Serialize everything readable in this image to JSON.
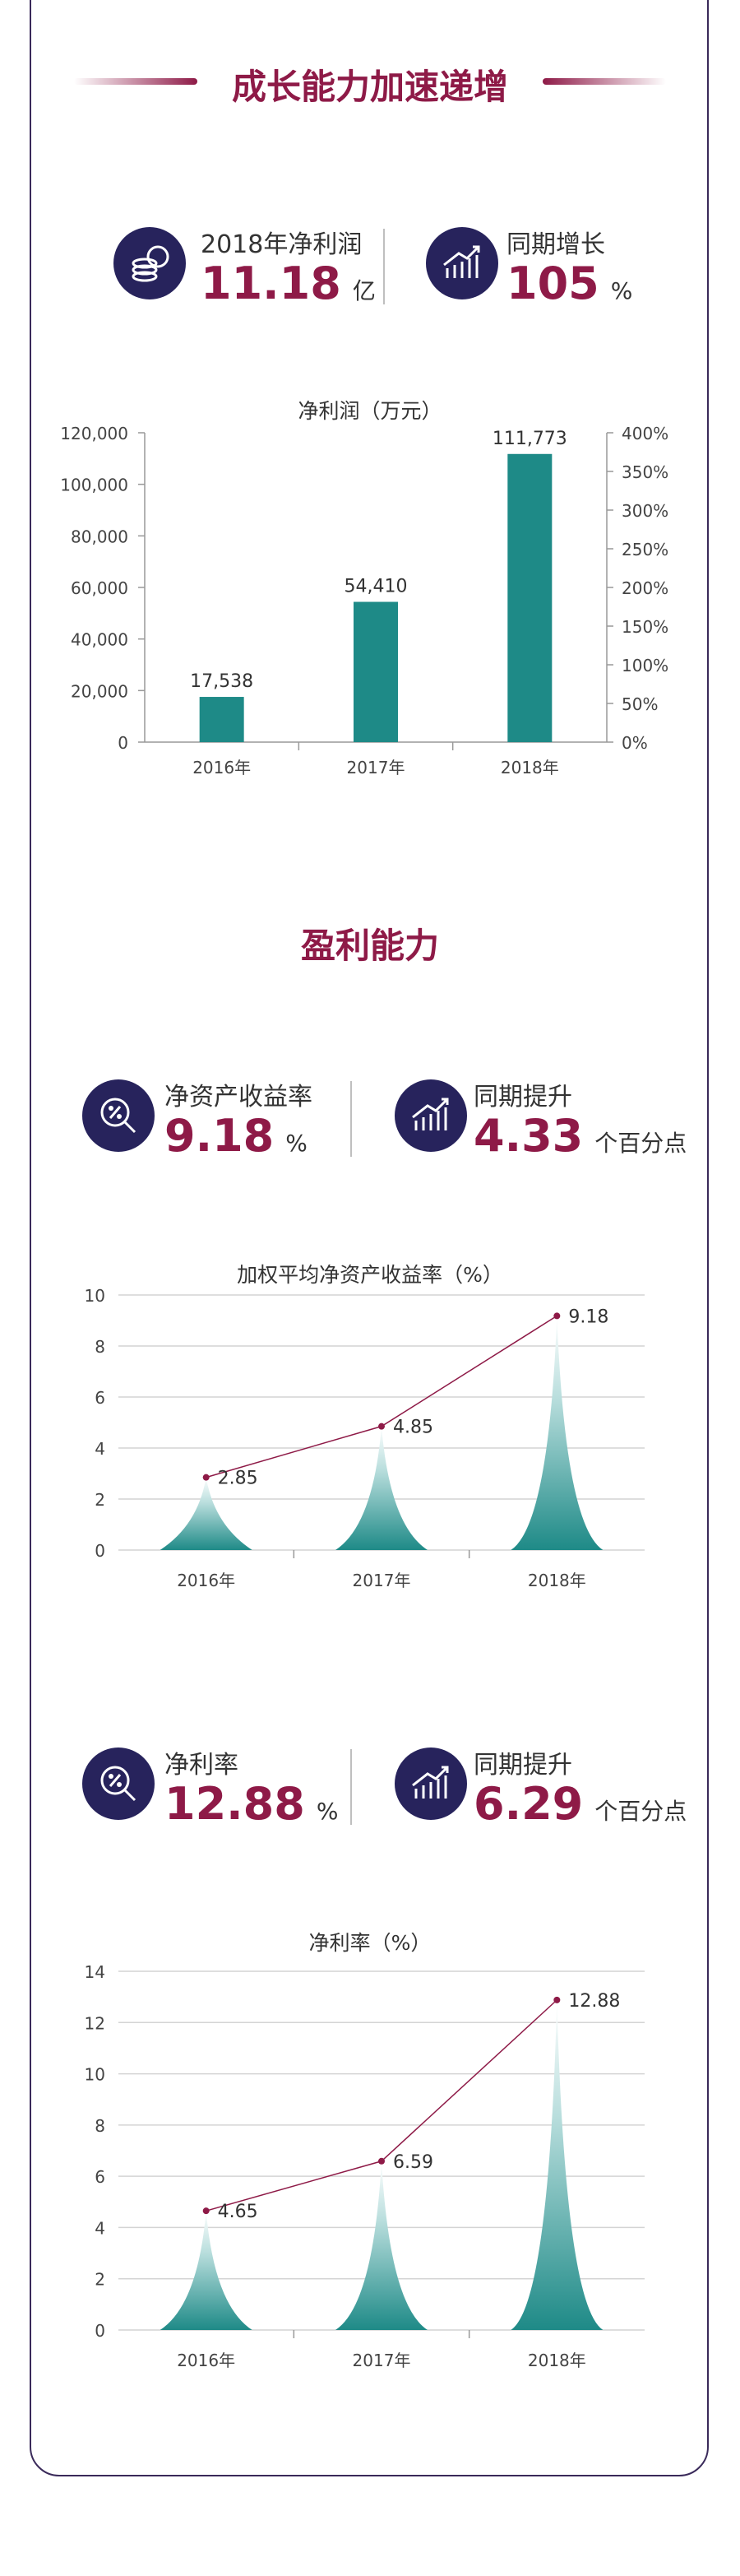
{
  "section1": {
    "title": "成长能力加速递增",
    "stat_left": {
      "label": "2018年净利润",
      "value": "11.18",
      "unit": "亿",
      "icon": "coins-icon"
    },
    "stat_right": {
      "label": "同期增长",
      "value": "105",
      "unit": "%",
      "icon": "growth-chart-icon"
    }
  },
  "section2": {
    "title": "盈利能力",
    "stat_left": {
      "label": "净资产收益率",
      "value": "9.18",
      "unit": "%",
      "icon": "percent-magnifier-icon"
    },
    "stat_right": {
      "label": "同期提升",
      "value": "4.33",
      "unit": "个百分点",
      "icon": "growth-chart-icon"
    }
  },
  "section3": {
    "stat_left": {
      "label": "净利率",
      "value": "12.88",
      "unit": "%",
      "icon": "percent-magnifier-icon"
    },
    "stat_right": {
      "label": "同期提升",
      "value": "6.29",
      "unit": "个百分点",
      "icon": "growth-chart-icon"
    }
  },
  "colors": {
    "accent": "#8e1a47",
    "navy": "#27235c",
    "teal": "#1e8a87",
    "line": "#8e1a47"
  },
  "chart_data": [
    {
      "type": "bar",
      "title": "净利润（万元）",
      "categories": [
        "2016年",
        "2017年",
        "2018年"
      ],
      "values": [
        17538,
        54410,
        111773
      ],
      "value_labels": [
        "17,538",
        "54,410",
        "111,773"
      ],
      "ylim": [
        0,
        120000
      ],
      "yticks": [
        "0",
        "20,000",
        "40,000",
        "60,000",
        "80,000",
        "100,000",
        "120,000"
      ],
      "y2ticks": [
        "0%",
        "50%",
        "100%",
        "150%",
        "200%",
        "250%",
        "300%",
        "350%",
        "400%"
      ],
      "grid": false
    },
    {
      "type": "area",
      "title": "加权平均净资产收益率（%）",
      "categories": [
        "2016年",
        "2017年",
        "2018年"
      ],
      "values": [
        2.85,
        4.85,
        9.18
      ],
      "value_labels": [
        "2.85",
        "4.85",
        "9.18"
      ],
      "ylim": [
        0,
        10
      ],
      "yticks": [
        "0",
        "2",
        "4",
        "6",
        "8",
        "10"
      ],
      "grid": true
    },
    {
      "type": "area",
      "title": "净利率（%）",
      "categories": [
        "2016年",
        "2017年",
        "2018年"
      ],
      "values": [
        4.65,
        6.59,
        12.88
      ],
      "value_labels": [
        "4.65",
        "6.59",
        "12.88"
      ],
      "ylim": [
        0,
        14
      ],
      "yticks": [
        "0",
        "2",
        "4",
        "6",
        "8",
        "10",
        "12",
        "14"
      ],
      "grid": true
    }
  ]
}
